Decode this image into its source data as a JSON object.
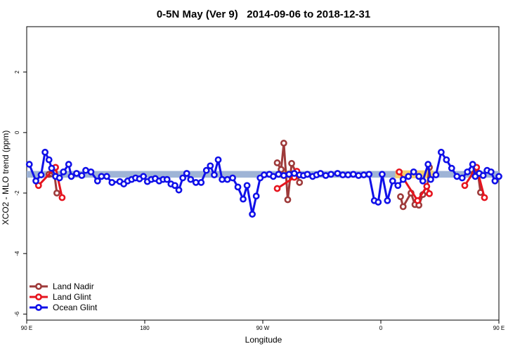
{
  "chart_data": {
    "type": "line",
    "title": "0-5N May (Ver 9)   2014-09-06 to 2018-12-31",
    "xlabel": "Longitude",
    "ylabel": "XCO2 - MLO trend (ppm)",
    "xlim": [
      90,
      450
    ],
    "ylim": [
      -6.2,
      3.5
    ],
    "x_ticks": [
      {
        "value": 90,
        "label": "90 E"
      },
      {
        "value": 180,
        "label": "180"
      },
      {
        "value": 270,
        "label": "90 W"
      },
      {
        "value": 360,
        "label": "0"
      },
      {
        "value": 450,
        "label": "90 E"
      }
    ],
    "y_ticks": [
      {
        "value": 2,
        "label": "2"
      },
      {
        "value": 0,
        "label": "0"
      },
      {
        "value": -2,
        "label": "-2"
      },
      {
        "value": -4,
        "label": "-4"
      },
      {
        "value": -6,
        "label": "-6"
      }
    ],
    "legend_position": "bottom-left",
    "bands": [
      {
        "color": "#9fb4d6",
        "segments": [
          [
            90,
            450
          ]
        ],
        "y": -1.38,
        "thickness": 0.22
      },
      {
        "color": "#f5cf6c",
        "segments": [
          [
            283,
            295
          ],
          [
            371,
            400
          ]
        ],
        "y": -1.38,
        "thickness": 0.26
      }
    ],
    "series": [
      {
        "name": "Land Nadir",
        "color": "#9e3a3a",
        "x": [
          107,
          109,
          111,
          113
        ],
        "y": [
          -1.38,
          -1.36,
          -1.33,
          -2.0
        ]
      },
      {
        "name": "Land Nadir",
        "color": "#9e3a3a",
        "x": [
          281,
          284,
          286,
          289,
          292,
          296,
          298
        ],
        "y": [
          -1.0,
          -1.22,
          -0.35,
          -2.22,
          -1.02,
          -1.38,
          -1.65
        ]
      },
      {
        "name": "Land Nadir",
        "color": "#9e3a3a",
        "x": [
          375,
          377,
          383,
          386,
          389,
          392,
          395,
          397
        ],
        "y": [
          -2.12,
          -2.45,
          -2.0,
          -2.38,
          -2.4,
          -2.05,
          -1.95,
          -1.15
        ]
      },
      {
        "name": "Land Nadir",
        "color": "#9e3a3a",
        "x": [
          431,
          434,
          436
        ],
        "y": [
          -1.35,
          -1.33,
          -1.98
        ]
      },
      {
        "name": "Land Glint",
        "color": "#e6141e",
        "x": [
          99,
          112,
          117
        ],
        "y": [
          -1.75,
          -1.15,
          -2.15
        ]
      },
      {
        "name": "Land Glint",
        "color": "#e6141e",
        "x": [
          281,
          294,
          296
        ],
        "y": [
          -1.85,
          -1.48,
          -1.28
        ]
      },
      {
        "name": "Land Glint",
        "color": "#e6141e",
        "x": [
          374,
          388,
          395,
          397
        ],
        "y": [
          -1.3,
          -2.25,
          -1.78,
          -2.02
        ]
      },
      {
        "name": "Land Glint",
        "color": "#e6141e",
        "x": [
          424,
          433,
          439
        ],
        "y": [
          -1.75,
          -1.15,
          -2.15
        ]
      },
      {
        "name": "Ocean Glint",
        "color": "#1010e8",
        "x": [
          92,
          97,
          101,
          104,
          107,
          109,
          112,
          115,
          118,
          122,
          124,
          128,
          132,
          135,
          139,
          144,
          147,
          151,
          155,
          161,
          164,
          167,
          170,
          173,
          176,
          179,
          182,
          185,
          188,
          191,
          194,
          197,
          200,
          203,
          206,
          209,
          212,
          215,
          219,
          223,
          227,
          230,
          233,
          236,
          239,
          243,
          247,
          251,
          255,
          258,
          262,
          265,
          268,
          271,
          275,
          278,
          282,
          286,
          290,
          294,
          298,
          301,
          304,
          308,
          311,
          314,
          318,
          322,
          327,
          331,
          335,
          339,
          343,
          347,
          351,
          355,
          358,
          361,
          365,
          369,
          373,
          377,
          381,
          385,
          389,
          392,
          396,
          398,
          402,
          406,
          410,
          414,
          418,
          422,
          426,
          430,
          432,
          435,
          438,
          441,
          444,
          447,
          450
        ],
        "y": [
          -1.05,
          -1.6,
          -1.4,
          -0.65,
          -0.9,
          -1.18,
          -1.45,
          -1.5,
          -1.3,
          -1.05,
          -1.45,
          -1.35,
          -1.42,
          -1.25,
          -1.3,
          -1.6,
          -1.45,
          -1.45,
          -1.65,
          -1.62,
          -1.7,
          -1.6,
          -1.55,
          -1.5,
          -1.53,
          -1.45,
          -1.62,
          -1.55,
          -1.52,
          -1.6,
          -1.55,
          -1.55,
          -1.7,
          -1.75,
          -1.9,
          -1.5,
          -1.35,
          -1.55,
          -1.65,
          -1.65,
          -1.25,
          -1.1,
          -1.4,
          -0.9,
          -1.55,
          -1.55,
          -1.5,
          -1.8,
          -2.2,
          -1.75,
          -2.7,
          -2.1,
          -1.5,
          -1.4,
          -1.38,
          -1.45,
          -1.38,
          -1.42,
          -1.38,
          -1.35,
          -1.4,
          -1.42,
          -1.38,
          -1.45,
          -1.4,
          -1.35,
          -1.42,
          -1.38,
          -1.35,
          -1.4,
          -1.4,
          -1.38,
          -1.42,
          -1.4,
          -1.38,
          -2.25,
          -2.3,
          -1.38,
          -2.25,
          -1.6,
          -1.75,
          -1.55,
          -1.45,
          -1.3,
          -1.45,
          -1.6,
          -1.05,
          -1.55,
          -1.4,
          -0.65,
          -0.9,
          -1.18,
          -1.45,
          -1.5,
          -1.3,
          -1.05,
          -1.45,
          -1.35,
          -1.42,
          -1.25,
          -1.3,
          -1.6,
          -1.45
        ]
      }
    ],
    "legend": [
      {
        "label": "Land Nadir",
        "color": "#9e3a3a"
      },
      {
        "label": "Land Glint",
        "color": "#e6141e"
      },
      {
        "label": "Ocean Glint",
        "color": "#1010e8"
      }
    ]
  }
}
